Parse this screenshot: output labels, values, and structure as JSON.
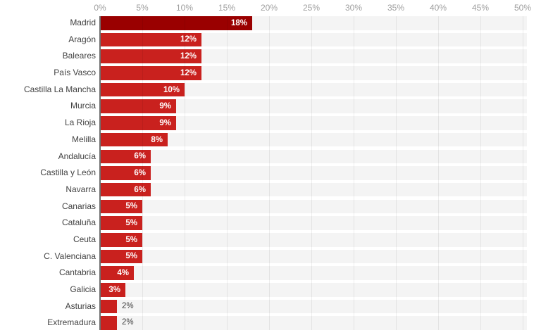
{
  "chart_data": {
    "type": "bar",
    "orientation": "horizontal",
    "title": "",
    "categories": [
      "Madrid",
      "Aragón",
      "Baleares",
      "País Vasco",
      "Castilla La Mancha",
      "Murcia",
      "La Rioja",
      "Melilla",
      "Andalucía",
      "Castilla y León",
      "Navarra",
      "Canarias",
      "Cataluña",
      "Ceuta",
      "C. Valenciana",
      "Cantabria",
      "Galicia",
      "Asturias",
      "Extremadura"
    ],
    "values": [
      18,
      12,
      12,
      12,
      10,
      9,
      9,
      8,
      6,
      6,
      6,
      5,
      5,
      5,
      5,
      4,
      3,
      2,
      2
    ],
    "value_labels": [
      "18%",
      "12%",
      "12%",
      "12%",
      "10%",
      "9%",
      "9%",
      "8%",
      "6%",
      "6%",
      "6%",
      "5%",
      "5%",
      "5%",
      "5%",
      "4%",
      "3%",
      "2%",
      "2%"
    ],
    "x_ticks": [
      "0%",
      "5%",
      "10%",
      "15%",
      "20%",
      "25%",
      "30%",
      "35%",
      "40%",
      "45%",
      "50%"
    ],
    "x_tick_values": [
      0,
      5,
      10,
      15,
      20,
      25,
      30,
      35,
      40,
      45,
      50
    ],
    "xlim": [
      0,
      50
    ],
    "grid": true,
    "legend": "none",
    "highlighted_category": "Madrid",
    "colors": {
      "bar": "#c9211e",
      "bar_highlight": "#9a0000",
      "row_band": "#f4f4f4",
      "gridline": "#e4e4e4",
      "axis_line": "#6e6e6e",
      "category_label": "#424242",
      "tick_label": "#9e9e9e",
      "value_label_inside": "#ffffff",
      "value_label_outside": "#424242"
    }
  }
}
